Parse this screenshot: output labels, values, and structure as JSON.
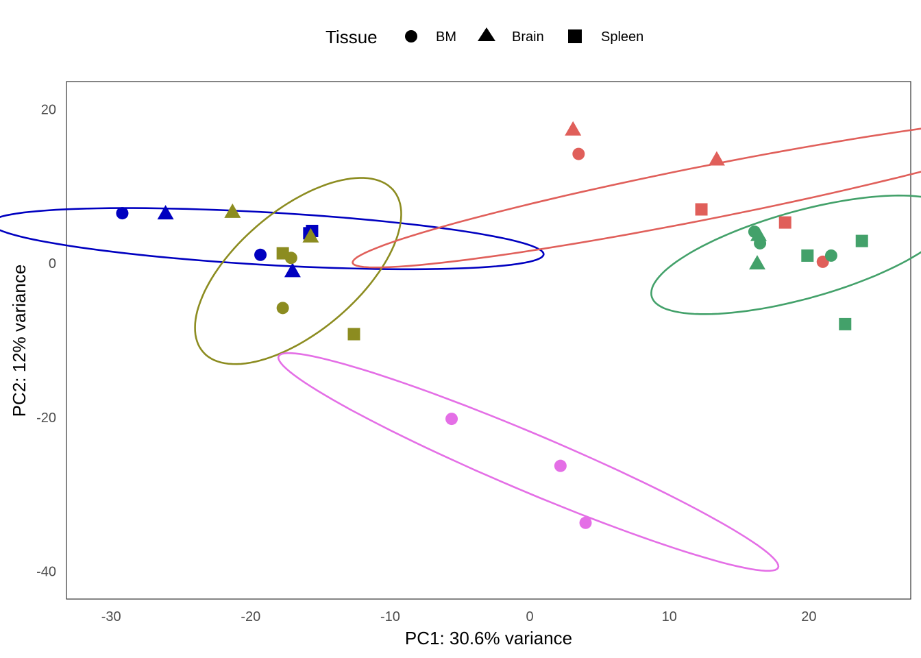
{
  "chart_data": {
    "type": "scatter",
    "title": "",
    "xlabel": "PC1: 30.6% variance",
    "ylabel": "PC2: 12% variance",
    "xlim": [
      -33.2,
      27.3
    ],
    "ylim": [
      -43.6,
      23.6
    ],
    "xticks": [
      -30,
      -20,
      -10,
      0,
      10,
      20
    ],
    "yticks": [
      -40,
      -20,
      0,
      20
    ],
    "xtick_labels": [
      "-30",
      "-20",
      "-10",
      "0",
      "10",
      "20"
    ],
    "ytick_labels": [
      "-40",
      "-20",
      "0",
      "20"
    ],
    "grid": false,
    "legend": {
      "title": "Tissue",
      "position": "top",
      "entries": [
        {
          "label": "BM",
          "shape": "circle"
        },
        {
          "label": "Brain",
          "shape": "triangle"
        },
        {
          "label": "Spleen",
          "shape": "square"
        }
      ]
    },
    "groups": [
      {
        "color": "#0000C0",
        "ellipse": {
          "cx": -18.8,
          "cy": 3.2,
          "rx": 19.9,
          "ry": 3.4,
          "angle_deg": -6
        },
        "points": [
          {
            "x": -29.2,
            "y": 6.5,
            "tissue": "BM"
          },
          {
            "x": -19.3,
            "y": 1.1,
            "tissue": "BM"
          },
          {
            "x": -26.1,
            "y": 6.5,
            "tissue": "Brain"
          },
          {
            "x": -17.0,
            "y": -1.0,
            "tissue": "Brain"
          },
          {
            "x": -15.8,
            "y": 3.9,
            "tissue": "Spleen"
          },
          {
            "x": -15.6,
            "y": 4.2,
            "tissue": "Spleen"
          }
        ]
      },
      {
        "color": "#8C8C20",
        "ellipse": {
          "cx": -16.6,
          "cy": -1.0,
          "rx": 5.4,
          "ry": 13.1,
          "angle_deg": -25
        },
        "points": [
          {
            "x": -17.1,
            "y": 0.7,
            "tissue": "BM"
          },
          {
            "x": -17.7,
            "y": -5.8,
            "tissue": "BM"
          },
          {
            "x": -21.3,
            "y": 6.7,
            "tissue": "Brain"
          },
          {
            "x": -15.7,
            "y": 3.5,
            "tissue": "Brain"
          },
          {
            "x": -17.7,
            "y": 1.3,
            "tissue": "Spleen"
          },
          {
            "x": -12.6,
            "y": -9.2,
            "tissue": "Spleen"
          }
        ]
      },
      {
        "color": "#E05F5A",
        "ellipse": {
          "cx": 12.7,
          "cy": 9.2,
          "rx": 27.0,
          "ry": 3.3,
          "angle_deg": 20
        },
        "points": [
          {
            "x": 3.5,
            "y": 14.2,
            "tissue": "BM"
          },
          {
            "x": 21.0,
            "y": 0.2,
            "tissue": "BM"
          },
          {
            "x": 3.1,
            "y": 17.4,
            "tissue": "Brain"
          },
          {
            "x": 13.4,
            "y": 13.5,
            "tissue": "Brain"
          },
          {
            "x": 12.3,
            "y": 7.0,
            "tissue": "Spleen"
          },
          {
            "x": 18.3,
            "y": 5.3,
            "tissue": "Spleen"
          }
        ]
      },
      {
        "color": "#43A16A",
        "ellipse": {
          "cx": 19.5,
          "cy": 1.1,
          "rx": 12.2,
          "ry": 5.2,
          "angle_deg": 31
        },
        "points": [
          {
            "x": 16.1,
            "y": 4.1,
            "tissue": "BM"
          },
          {
            "x": 16.5,
            "y": 2.6,
            "tissue": "BM"
          },
          {
            "x": 21.6,
            "y": 1.0,
            "tissue": "BM"
          },
          {
            "x": 16.4,
            "y": 3.7,
            "tissue": "Brain"
          },
          {
            "x": 16.3,
            "y": 0.0,
            "tissue": "Brain"
          },
          {
            "x": 19.9,
            "y": 1.0,
            "tissue": "Spleen"
          },
          {
            "x": 22.6,
            "y": -7.9,
            "tissue": "Spleen"
          },
          {
            "x": 23.8,
            "y": 2.9,
            "tissue": "Spleen"
          }
        ]
      },
      {
        "color": "#E46FE6",
        "ellipse": {
          "cx": -0.1,
          "cy": -25.8,
          "rx": 22.6,
          "ry": 3.2,
          "angle_deg": -38
        },
        "points": [
          {
            "x": -5.6,
            "y": -20.2,
            "tissue": "BM"
          },
          {
            "x": 2.2,
            "y": -26.3,
            "tissue": "BM"
          },
          {
            "x": 4.0,
            "y": -33.7,
            "tissue": "BM"
          }
        ]
      }
    ]
  }
}
